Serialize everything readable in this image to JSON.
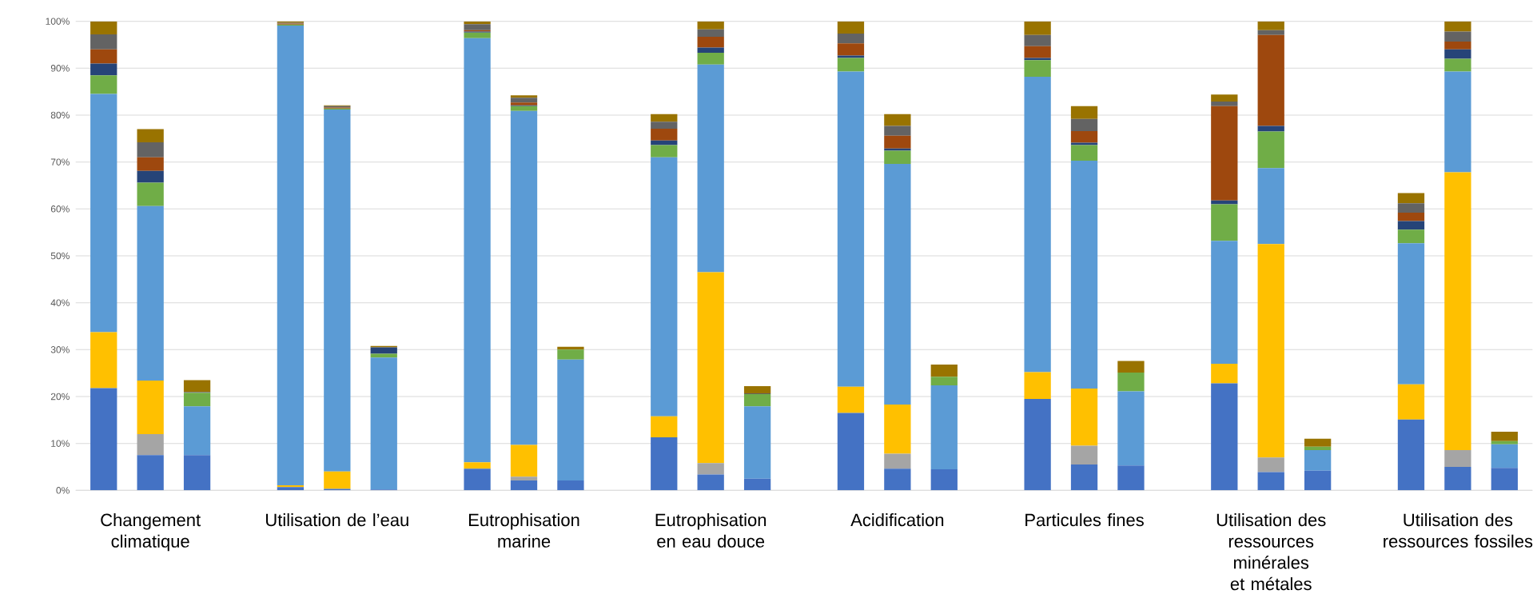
{
  "chart_data": {
    "type": "bar",
    "stacked": true,
    "categories": [
      null,
      "Changement climatique",
      null,
      null,
      null,
      "Utilisation de l’eau",
      null,
      null,
      null,
      "Eutrophisation marine",
      null,
      null,
      null,
      "Eutrophisation en eau douce",
      null,
      null,
      null,
      "Acidification",
      null,
      null,
      null,
      "Particules fines",
      null,
      null,
      null,
      "Utilisation des ressources minérales et métales",
      null,
      null,
      null,
      "Utilisation des ressources fossiles",
      null
    ],
    "ylim": [
      0,
      100
    ],
    "yticks": [
      {
        "value": 0,
        "label": "0%"
      },
      {
        "value": 10,
        "label": "10%"
      },
      {
        "value": 20,
        "label": "20%"
      },
      {
        "value": 30,
        "label": "30%"
      },
      {
        "value": 40,
        "label": "40%"
      },
      {
        "value": 50,
        "label": "50%"
      },
      {
        "value": 60,
        "label": "60%"
      },
      {
        "value": 70,
        "label": "70%"
      },
      {
        "value": 80,
        "label": "80%"
      },
      {
        "value": 90,
        "label": "90%"
      },
      {
        "value": 100,
        "label": "100%"
      }
    ],
    "grid": "y",
    "series": [
      {
        "color": "#4472c4",
        "values": [
          21.8,
          7.5,
          7.5,
          null,
          0.7,
          0.3,
          0.2,
          null,
          4.6,
          2.1,
          2.1,
          null,
          11.3,
          3.4,
          2.5,
          null,
          16.5,
          4.6,
          4.5,
          null,
          19.5,
          5.5,
          5.3,
          null,
          22.8,
          3.9,
          4.2,
          null,
          15.1,
          5.0,
          4.8
        ]
      },
      {
        "color": "#a5a5a5",
        "values": [
          0,
          4.5,
          0,
          null,
          0,
          0,
          0,
          null,
          0,
          0.8,
          0,
          null,
          0,
          2.4,
          0,
          null,
          0,
          3.2,
          0,
          null,
          0,
          4.0,
          0,
          null,
          0,
          3.1,
          0,
          null,
          0,
          3.6,
          0
        ]
      },
      {
        "color": "#ffc000",
        "values": [
          11.9,
          11.4,
          0,
          null,
          0.4,
          3.7,
          0,
          null,
          1.4,
          6.8,
          0,
          null,
          4.5,
          40.7,
          0,
          null,
          5.6,
          10.5,
          0,
          null,
          5.7,
          12.2,
          0,
          null,
          4.2,
          45.5,
          0,
          null,
          7.5,
          59.2,
          0
        ]
      },
      {
        "color": "#5b9bd5",
        "values": [
          50.8,
          37.2,
          10.4,
          null,
          98.0,
          77.2,
          28.1,
          null,
          90.4,
          71.2,
          25.8,
          null,
          55.2,
          44.3,
          15.4,
          null,
          67.2,
          51.3,
          17.9,
          null,
          63.0,
          48.6,
          15.8,
          null,
          26.2,
          16.2,
          4.4,
          null,
          30.1,
          21.5,
          5.0
        ]
      },
      {
        "color": "#70ad47",
        "values": [
          4.0,
          5.0,
          2.9,
          null,
          0.2,
          0.2,
          0.8,
          null,
          1.2,
          1.0,
          2.1,
          null,
          2.6,
          2.5,
          2.6,
          null,
          2.9,
          2.8,
          1.8,
          null,
          3.5,
          3.3,
          4.0,
          null,
          7.8,
          7.8,
          0.7,
          null,
          2.9,
          2.7,
          0.7
        ]
      },
      {
        "color": "#264478",
        "values": [
          2.5,
          2.5,
          0,
          null,
          0,
          0,
          1.4,
          null,
          0.2,
          0.2,
          0,
          null,
          1.0,
          1.1,
          0,
          null,
          0.5,
          0.5,
          0,
          null,
          0.5,
          0.5,
          0,
          null,
          0.8,
          1.2,
          0,
          null,
          1.8,
          2.0,
          0
        ]
      },
      {
        "color": "#9e480e",
        "values": [
          3.0,
          2.9,
          0,
          null,
          0.2,
          0.2,
          0,
          null,
          0.3,
          0.6,
          0,
          null,
          2.5,
          2.3,
          0,
          null,
          2.6,
          2.7,
          0,
          null,
          2.5,
          2.5,
          0,
          null,
          20.1,
          19.4,
          0,
          null,
          1.8,
          1.7,
          0
        ]
      },
      {
        "color": "#636363",
        "values": [
          3.2,
          3.2,
          0.2,
          null,
          0.2,
          0.3,
          0,
          null,
          1.3,
          1.0,
          0,
          null,
          1.5,
          1.6,
          0.2,
          null,
          2.1,
          2.1,
          0,
          null,
          2.4,
          2.6,
          0,
          null,
          1.0,
          1.0,
          0,
          null,
          2.0,
          2.1,
          0
        ]
      },
      {
        "color": "#997300",
        "values": [
          2.8,
          2.8,
          2.5,
          null,
          0.3,
          0.2,
          0.3,
          null,
          0.6,
          0.5,
          0.6,
          null,
          1.6,
          1.7,
          1.5,
          null,
          2.6,
          2.5,
          2.6,
          null,
          2.9,
          2.7,
          2.5,
          null,
          1.5,
          1.9,
          1.7,
          null,
          2.2,
          2.2,
          2.0
        ]
      }
    ]
  }
}
